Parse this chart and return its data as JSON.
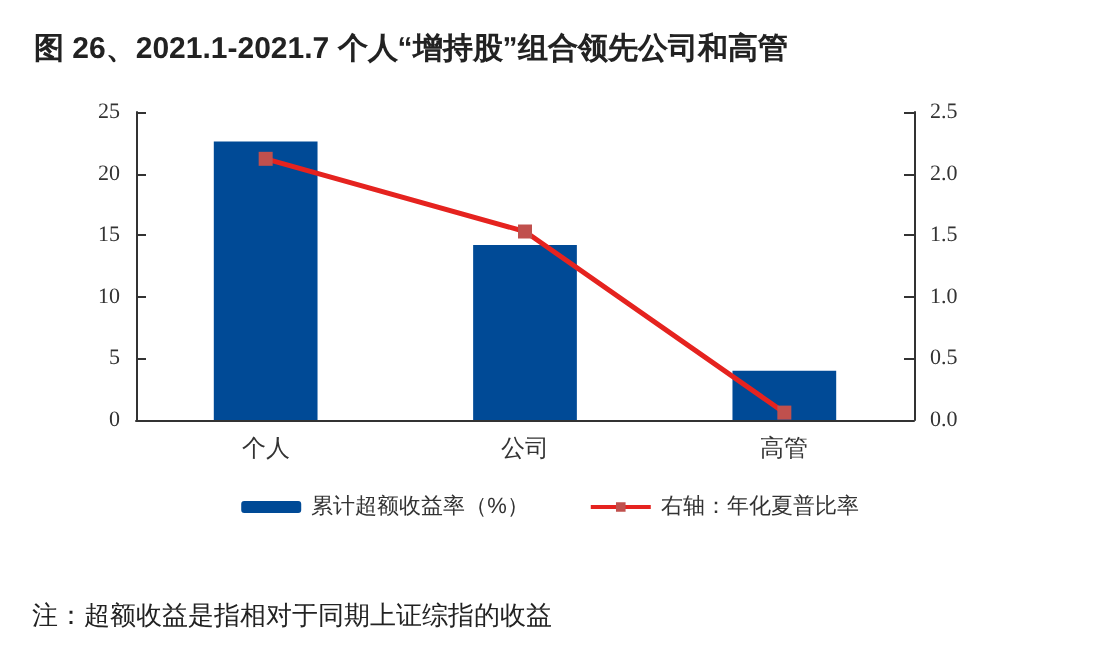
{
  "chart_data": {
    "type": "bar",
    "title": "图 26、2021.1-2021.7 个人“增持股”组合领先公司和高管",
    "categories": [
      "个人",
      "公司",
      "高管"
    ],
    "series": [
      {
        "name": "累计超额收益率（%）",
        "color": "#004a96",
        "values": [
          22.6,
          14.2,
          4.0
        ]
      },
      {
        "name": "右轴：年化夏普比率",
        "type": "line",
        "axis": "y2",
        "color": "#e5231f",
        "values": [
          2.12,
          1.53,
          0.06
        ]
      }
    ],
    "ylim": [
      0,
      25
    ],
    "yticks": [
      0,
      5,
      10,
      15,
      20,
      25
    ],
    "y2lim": [
      0,
      2.5
    ],
    "y2ticks": [
      {
        "value": 0,
        "label": "0.0"
      },
      {
        "value": 0.5,
        "label": "0.5"
      },
      {
        "value": 1,
        "label": "1.0"
      },
      {
        "value": 1.5,
        "label": "1.5"
      },
      {
        "value": 2,
        "label": "2.0"
      },
      {
        "value": 2.5,
        "label": "2.5"
      }
    ],
    "marker": "square",
    "legend": "bottom",
    "grid": false,
    "annotations": [
      "注：超额收益是指相对于同期上证综指的收益"
    ]
  }
}
